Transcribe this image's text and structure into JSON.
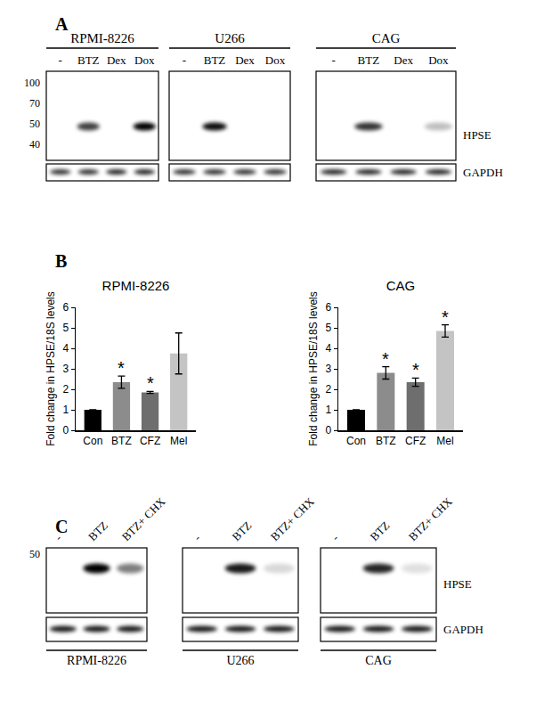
{
  "panel_labels": [
    "A",
    "B",
    "C"
  ],
  "panel_a": {
    "mw_markers": [
      100,
      70,
      50,
      40
    ],
    "row_labels": [
      "HPSE",
      "GAPDH"
    ],
    "blots": [
      {
        "cell_line": "RPMI-8226",
        "lanes": [
          "-",
          "BTZ",
          "Dex",
          "Dox"
        ],
        "hpse_intensity": [
          0,
          0.75,
          0,
          1.0
        ],
        "gapdh_intensity": [
          0.8,
          0.8,
          0.85,
          0.85
        ]
      },
      {
        "cell_line": "U266",
        "lanes": [
          "-",
          "BTZ",
          "Dex",
          "Dox"
        ],
        "hpse_intensity": [
          0,
          0.95,
          0,
          0
        ],
        "gapdh_intensity": [
          0.8,
          0.8,
          0.8,
          0.8
        ]
      },
      {
        "cell_line": "CAG",
        "lanes": [
          "-",
          "BTZ",
          "Dex",
          "Dox"
        ],
        "hpse_intensity": [
          0,
          0.8,
          0,
          0.25
        ],
        "gapdh_intensity": [
          0.85,
          0.85,
          0.85,
          0.85
        ]
      }
    ]
  },
  "chart_data": [
    {
      "type": "bar",
      "title": "RPMI-8226",
      "y_label": "Fold change in HPSE/18S levels",
      "categories": [
        "Con",
        "BTZ",
        "CFZ",
        "Mel"
      ],
      "values": [
        1,
        2.35,
        1.85,
        3.75
      ],
      "errors": [
        0,
        0.3,
        0.05,
        1.0
      ],
      "colors": [
        "#000000",
        "#8c8c8c",
        "#6e6e6e",
        "#c4c4c4"
      ],
      "ylim": [
        0,
        6
      ],
      "yticks": [
        0,
        1,
        2,
        3,
        4,
        5,
        6
      ],
      "grid": false,
      "annotations": [
        {
          "category": "BTZ",
          "text": "*"
        },
        {
          "category": "CFZ",
          "text": "*"
        }
      ]
    },
    {
      "type": "bar",
      "title": "CAG",
      "y_label": "Fold change in HPSE/18S levels",
      "categories": [
        "Con",
        "BTZ",
        "CFZ",
        "Mel"
      ],
      "values": [
        1,
        2.8,
        2.35,
        4.85
      ],
      "errors": [
        0,
        0.3,
        0.2,
        0.3
      ],
      "colors": [
        "#000000",
        "#8c8c8c",
        "#6e6e6e",
        "#c4c4c4"
      ],
      "ylim": [
        0,
        6
      ],
      "yticks": [
        0,
        1,
        2,
        3,
        4,
        5,
        6
      ],
      "grid": false,
      "annotations": [
        {
          "category": "BTZ",
          "text": "*"
        },
        {
          "category": "CFZ",
          "text": "*"
        },
        {
          "category": "Mel",
          "text": "*"
        }
      ]
    }
  ],
  "panel_c": {
    "mw_markers": [
      50
    ],
    "row_labels": [
      "HPSE",
      "GAPDH"
    ],
    "blots": [
      {
        "cell_line": "RPMI-8226",
        "lanes": [
          "-",
          "BTZ",
          "BTZ+ CHX"
        ],
        "hpse_intensity": [
          0,
          1.0,
          0.5
        ],
        "gapdh_intensity": [
          0.9,
          0.9,
          0.9
        ]
      },
      {
        "cell_line": "U266",
        "lanes": [
          "-",
          "BTZ",
          "BTZ+ CHX"
        ],
        "hpse_intensity": [
          0,
          0.9,
          0.15
        ],
        "gapdh_intensity": [
          0.9,
          0.9,
          0.9
        ]
      },
      {
        "cell_line": "CAG",
        "lanes": [
          "-",
          "BTZ",
          "BTZ+ CHX"
        ],
        "hpse_intensity": [
          0,
          0.85,
          0.12
        ],
        "gapdh_intensity": [
          0.9,
          0.9,
          0.9
        ]
      }
    ]
  }
}
